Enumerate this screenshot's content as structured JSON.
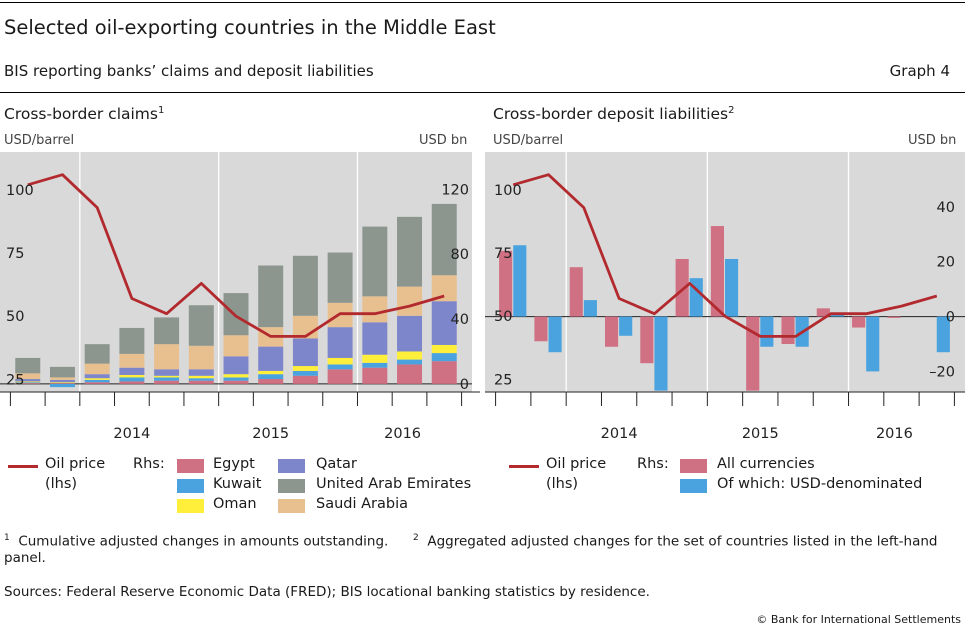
{
  "header": {
    "title": "Selected oil-exporting countries in the Middle East",
    "subtitle": "BIS reporting banks’ claims and deposit liabilities",
    "graph_label": "Graph 4"
  },
  "colors": {
    "oil_price": "#b2292e",
    "egypt": "#cf7083",
    "kuwait": "#4aa3df",
    "oman": "#ffef3a",
    "qatar": "#7d86cb",
    "uae": "#8c968e",
    "saudi": "#e8c08f",
    "all_currencies": "#cf7083",
    "usd_denominated": "#4aa3df",
    "plot_bg": "#d9d9d9"
  },
  "left_panel": {
    "title": "Cross-border claims",
    "title_note": "1",
    "lhs_unit": "USD/barrel",
    "rhs_unit": "USD bn",
    "legend_line": [
      "Oil price",
      "(lhs)"
    ],
    "legend_rhs": "Rhs:",
    "legend_items": [
      "Egypt",
      "Qatar",
      "Kuwait",
      "United Arab Emirates",
      "Oman",
      "Saudi Arabia"
    ]
  },
  "right_panel": {
    "title": "Cross-border deposit liabilities",
    "title_note": "2",
    "lhs_unit": "USD/barrel",
    "rhs_unit": "USD bn",
    "legend_line": [
      "Oil price",
      "(lhs)"
    ],
    "legend_rhs": "Rhs:",
    "legend_items": [
      "All currencies",
      "Of which: USD-denominated"
    ]
  },
  "footnotes": {
    "note1_mark": "1",
    "note1": "Cumulative adjusted changes in amounts outstanding.",
    "note2_mark": "2",
    "note2a": "Aggregated adjusted changes for the set of countries listed in the left-hand",
    "note2b": "panel.",
    "sources": "Sources: Federal Reserve Economic Data (FRED); BIS locational banking statistics by residence.",
    "copyright": "© Bank for International Settlements"
  },
  "chart_data": [
    {
      "type": "bar",
      "stacked": true,
      "title": "Cross-border claims",
      "quarters": [
        "2013Q3",
        "2013Q4",
        "2014Q1",
        "2014Q2",
        "2014Q3",
        "2014Q4",
        "2015Q1",
        "2015Q2",
        "2015Q3",
        "2015Q4",
        "2016Q1",
        "2016Q2",
        "2016Q3"
      ],
      "x_tick_labels": [
        "2014",
        "2015",
        "2016"
      ],
      "y_left": {
        "label": "USD/barrel",
        "ylim": [
          20,
          115
        ],
        "ticks": [
          25,
          50,
          75,
          100
        ]
      },
      "y_right": {
        "label": "USD bn",
        "ylim": [
          -5,
          143
        ],
        "ticks": [
          0,
          40,
          80,
          120
        ]
      },
      "series": [
        {
          "name": "Egypt",
          "values": [
            0.5,
            0.5,
            1,
            1.5,
            2,
            2,
            2,
            3,
            5,
            9,
            10,
            12,
            14
          ]
        },
        {
          "name": "Kuwait",
          "values": [
            0.5,
            -2,
            1.5,
            2.5,
            2,
            1.5,
            2,
            3,
            3,
            3,
            3,
            3,
            5
          ]
        },
        {
          "name": "Oman",
          "values": [
            0.5,
            0.5,
            1,
            1.5,
            1,
            1.5,
            2,
            2,
            3,
            4,
            5,
            5,
            5
          ]
        },
        {
          "name": "Qatar",
          "values": [
            1.5,
            1.5,
            2.5,
            4.5,
            4,
            4,
            11,
            15,
            17,
            19,
            20,
            22,
            27
          ]
        },
        {
          "name": "Saudi Arabia",
          "values": [
            3.5,
            1.5,
            6.5,
            8.5,
            15.5,
            14.5,
            13,
            12,
            14,
            15,
            16,
            18,
            16
          ]
        },
        {
          "name": "United Arab Emirates",
          "values": [
            9.5,
            6.5,
            12,
            16,
            16.5,
            25,
            26,
            38,
            37,
            31,
            43,
            43,
            44
          ]
        }
      ],
      "line": {
        "name": "Oil price",
        "axis": "left",
        "values": [
          102,
          106,
          93,
          57,
          51,
          63,
          50,
          42,
          42,
          51,
          51,
          54,
          58
        ]
      }
    },
    {
      "type": "bar",
      "grouped": true,
      "title": "Cross-border deposit liabilities",
      "quarters": [
        "2013Q3",
        "2013Q4",
        "2014Q1",
        "2014Q2",
        "2014Q3",
        "2014Q4",
        "2015Q1",
        "2015Q2",
        "2015Q3",
        "2015Q4",
        "2016Q1",
        "2016Q2",
        "2016Q3"
      ],
      "x_tick_labels": [
        "2014",
        "2015",
        "2016"
      ],
      "y_left": {
        "label": "USD/barrel",
        "ylim": [
          20,
          115
        ],
        "ticks": [
          25,
          50,
          75,
          100
        ]
      },
      "y_right": {
        "label": "USD bn",
        "ylim": [
          -27.5,
          60
        ],
        "ticks": [
          -20,
          0,
          20,
          40
        ]
      },
      "series": [
        {
          "name": "All currencies",
          "values": [
            24,
            -9,
            18,
            -11,
            -17,
            21,
            33,
            -27,
            -10,
            3,
            -4,
            -0.5,
            null
          ]
        },
        {
          "name": "Of which: USD-denominated",
          "values": [
            26,
            -13,
            6,
            -7,
            -27,
            14,
            21,
            -11,
            -11,
            1,
            -20,
            null,
            -13
          ]
        }
      ],
      "line": {
        "name": "Oil price",
        "axis": "left",
        "values": [
          102,
          106,
          93,
          57,
          51,
          63,
          50,
          42,
          42,
          51,
          51,
          54,
          58
        ]
      }
    }
  ]
}
